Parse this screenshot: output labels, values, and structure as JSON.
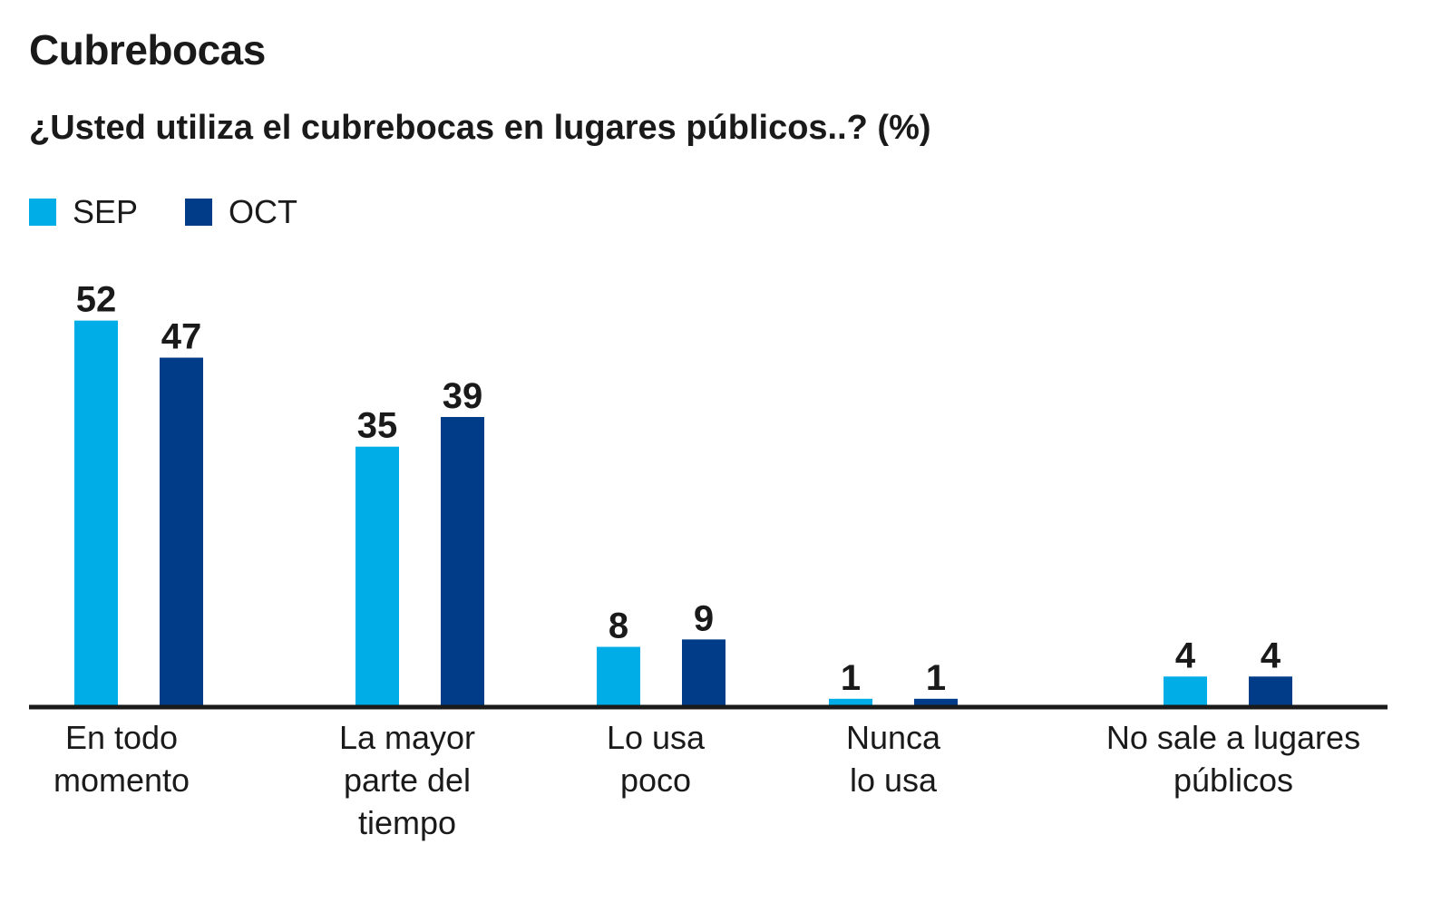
{
  "header": {
    "title": "Cubrebocas",
    "subtitle": "¿Usted utiliza el cubrebocas en lugares públicos..? (%)"
  },
  "legend": {
    "items": [
      {
        "label": "SEP",
        "color": "#00ade6"
      },
      {
        "label": "OCT",
        "color": "#003c87"
      }
    ]
  },
  "colors": {
    "axis": "#1a1a1a"
  },
  "chart_data": {
    "type": "bar",
    "title": "Cubrebocas",
    "subtitle": "¿Usted utiliza el cubrebocas en lugares públicos..? (%)",
    "categories": [
      [
        "En todo",
        "momento"
      ],
      [
        "La mayor",
        "parte del",
        "tiempo"
      ],
      [
        "Lo usa",
        "poco"
      ],
      [
        "Nunca",
        "lo usa"
      ],
      [
        "No sale a lugares",
        "públicos"
      ]
    ],
    "series": [
      {
        "name": "SEP",
        "color": "#00ade6",
        "values": [
          52,
          35,
          8,
          1,
          4
        ]
      },
      {
        "name": "OCT",
        "color": "#003c87",
        "values": [
          47,
          39,
          9,
          1,
          4
        ]
      }
    ],
    "ylim": [
      0,
      52
    ],
    "grid": false,
    "legend_position": "top-left"
  }
}
